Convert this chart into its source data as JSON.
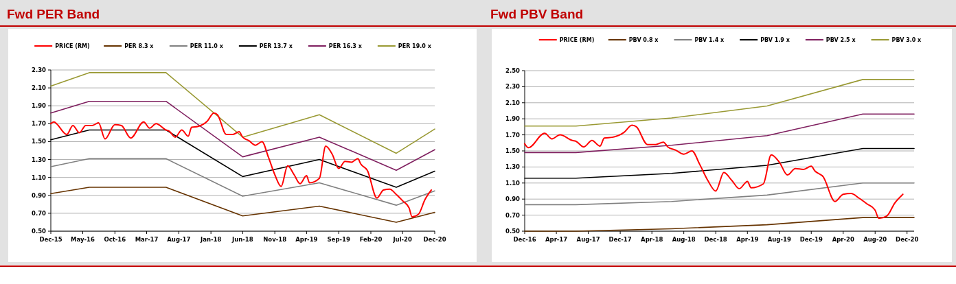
{
  "chart_data": [
    {
      "type": "line",
      "title": "Fwd PER Band",
      "legend": "top",
      "grid": "y",
      "marker": "none",
      "line_style": "solid",
      "xlim": [
        "2015-12",
        "2020-12"
      ],
      "ylim": [
        0.5,
        2.3
      ],
      "yticks": [
        {
          "value": 0.5,
          "label": "0.50"
        },
        {
          "value": 0.7,
          "label": "0.70"
        },
        {
          "value": 0.9,
          "label": "0.90"
        },
        {
          "value": 1.1,
          "label": "1.10"
        },
        {
          "value": 1.3,
          "label": "1.30"
        },
        {
          "value": 1.5,
          "label": "1.50"
        },
        {
          "value": 1.7,
          "label": "1.70"
        },
        {
          "value": 1.9,
          "label": "1.90"
        },
        {
          "value": 2.1,
          "label": "2.10"
        },
        {
          "value": 2.3,
          "label": "2.30"
        }
      ],
      "xticks": [
        {
          "value": "2015-12",
          "label": "Dec-15"
        },
        {
          "value": "2016-05",
          "label": "May-16"
        },
        {
          "value": "2016-10",
          "label": "Oct-16"
        },
        {
          "value": "2017-03",
          "label": "Mar-17"
        },
        {
          "value": "2017-08",
          "label": "Aug-17"
        },
        {
          "value": "2018-01",
          "label": "Jan-18"
        },
        {
          "value": "2018-06",
          "label": "Jun-18"
        },
        {
          "value": "2018-11",
          "label": "Nov-18"
        },
        {
          "value": "2019-04",
          "label": "Apr-19"
        },
        {
          "value": "2019-09",
          "label": "Sep-19"
        },
        {
          "value": "2020-02",
          "label": "Feb-20"
        },
        {
          "value": "2020-07",
          "label": "Jul-20"
        },
        {
          "value": "2020-12",
          "label": "Dec-20"
        }
      ],
      "series": [
        {
          "name": "PRICE (RM)",
          "color": "#ff0000",
          "x": [
            "2015-12-01",
            "2015-12-15",
            "2016-02-15",
            "2016-03-15",
            "2016-04-15",
            "2016-05-15",
            "2016-06-15",
            "2016-07-15",
            "2016-08-15",
            "2016-10-01",
            "2016-11-01",
            "2016-12-15",
            "2017-02-15",
            "2017-03-15",
            "2017-04-15",
            "2017-06-01",
            "2017-06-15",
            "2017-07-15",
            "2017-08-15",
            "2017-09-15",
            "2017-10-01",
            "2017-11-01",
            "2017-12-15",
            "2018-01-15",
            "2018-02-01",
            "2018-03-15",
            "2018-04-15",
            "2018-05-15",
            "2018-06-01",
            "2018-07-01",
            "2018-08-01",
            "2018-09-01",
            "2018-10-01",
            "2018-11-01",
            "2018-12-01",
            "2019-01-01",
            "2019-02-01",
            "2019-03-01",
            "2019-04-01",
            "2019-04-15",
            "2019-06-01",
            "2019-07-01",
            "2019-08-01",
            "2019-09-01",
            "2019-10-01",
            "2019-11-01",
            "2019-12-01",
            "2019-12-15",
            "2020-01-15",
            "2020-03-01",
            "2020-04-01",
            "2020-05-01",
            "2020-06-01",
            "2020-07-01",
            "2020-08-01",
            "2020-08-15",
            "2020-09-15",
            "2020-10-15",
            "2020-11-15"
          ],
          "values": [
            1.7,
            1.72,
            1.58,
            1.68,
            1.6,
            1.68,
            1.68,
            1.71,
            1.53,
            1.69,
            1.68,
            1.54,
            1.72,
            1.65,
            1.7,
            1.63,
            1.62,
            1.55,
            1.63,
            1.56,
            1.66,
            1.67,
            1.73,
            1.82,
            1.8,
            1.58,
            1.58,
            1.61,
            1.55,
            1.51,
            1.46,
            1.5,
            1.33,
            1.13,
            1.0,
            1.23,
            1.13,
            1.03,
            1.12,
            1.04,
            1.09,
            1.45,
            1.36,
            1.2,
            1.28,
            1.27,
            1.31,
            1.25,
            1.18,
            0.87,
            0.96,
            0.97,
            0.91,
            0.84,
            0.76,
            0.66,
            0.69,
            0.85,
            0.96
          ]
        },
        {
          "name": "PER 8.3 x",
          "color": "#663300",
          "x": [
            "2015-12",
            "2016-06",
            "2017-06",
            "2018-06",
            "2019-06",
            "2020-06",
            "2020-12"
          ],
          "values": [
            0.92,
            0.99,
            0.99,
            0.67,
            0.78,
            0.6,
            0.71
          ]
        },
        {
          "name": "PER 11.0 x",
          "color": "#808080",
          "x": [
            "2015-12",
            "2016-06",
            "2017-06",
            "2018-06",
            "2019-06",
            "2020-06",
            "2020-12"
          ],
          "values": [
            1.22,
            1.31,
            1.31,
            0.89,
            1.04,
            0.79,
            0.95
          ]
        },
        {
          "name": "PER 13.7 x",
          "color": "#000000",
          "x": [
            "2015-12",
            "2016-06",
            "2017-06",
            "2018-06",
            "2019-06",
            "2020-06",
            "2020-12"
          ],
          "values": [
            1.52,
            1.63,
            1.63,
            1.11,
            1.3,
            0.99,
            1.17
          ]
        },
        {
          "name": "PER 16.3 x",
          "color": "#7f1f5f",
          "x": [
            "2015-12",
            "2016-06",
            "2017-06",
            "2018-06",
            "2019-06",
            "2020-06",
            "2020-12"
          ],
          "values": [
            1.82,
            1.95,
            1.95,
            1.33,
            1.55,
            1.18,
            1.41
          ]
        },
        {
          "name": "PER 19.0 x",
          "color": "#999933",
          "x": [
            "2015-12",
            "2016-06",
            "2017-06",
            "2018-06",
            "2019-06",
            "2020-06",
            "2020-12"
          ],
          "values": [
            2.12,
            2.27,
            2.27,
            1.55,
            1.8,
            1.37,
            1.64
          ]
        }
      ]
    },
    {
      "type": "line",
      "title": "Fwd PBV Band",
      "legend": "top",
      "grid": "y",
      "marker": "none",
      "line_style": "solid",
      "xlim": [
        "2016-12",
        "2020-12-28"
      ],
      "ylim": [
        0.5,
        2.5
      ],
      "yticks": [
        {
          "value": 0.5,
          "label": "0.50"
        },
        {
          "value": 0.7,
          "label": "0.70"
        },
        {
          "value": 0.9,
          "label": "0.90"
        },
        {
          "value": 1.1,
          "label": "1.10"
        },
        {
          "value": 1.3,
          "label": "1.30"
        },
        {
          "value": 1.5,
          "label": "1.50"
        },
        {
          "value": 1.7,
          "label": "1.70"
        },
        {
          "value": 1.9,
          "label": "1.90"
        },
        {
          "value": 2.1,
          "label": "2.10"
        },
        {
          "value": 2.3,
          "label": "2.30"
        },
        {
          "value": 2.5,
          "label": "2.50"
        }
      ],
      "xticks": [
        {
          "value": "2016-12",
          "label": "Dec-16"
        },
        {
          "value": "2017-04",
          "label": "Apr-17"
        },
        {
          "value": "2017-08",
          "label": "Aug-17"
        },
        {
          "value": "2017-12",
          "label": "Dec-17"
        },
        {
          "value": "2018-04",
          "label": "Apr-18"
        },
        {
          "value": "2018-08",
          "label": "Aug-18"
        },
        {
          "value": "2018-12",
          "label": "Dec-18"
        },
        {
          "value": "2019-04",
          "label": "Apr-19"
        },
        {
          "value": "2019-08",
          "label": "Aug-19"
        },
        {
          "value": "2019-12",
          "label": "Dec-19"
        },
        {
          "value": "2020-04",
          "label": "Apr-20"
        },
        {
          "value": "2020-08",
          "label": "Aug-20"
        },
        {
          "value": "2020-12",
          "label": "Dec-20"
        }
      ],
      "series": [
        {
          "name": "PRICE (RM)",
          "color": "#ff0000",
          "x": [
            "2016-12-01",
            "2016-12-15",
            "2017-02-15",
            "2017-03-15",
            "2017-04-15",
            "2017-06-01",
            "2017-06-15",
            "2017-07-15",
            "2017-08-15",
            "2017-09-15",
            "2017-10-01",
            "2017-11-01",
            "2017-12-15",
            "2018-01-15",
            "2018-02-01",
            "2018-03-15",
            "2018-04-15",
            "2018-05-15",
            "2018-06-01",
            "2018-07-01",
            "2018-08-01",
            "2018-09-01",
            "2018-10-01",
            "2018-11-01",
            "2018-12-01",
            "2019-01-01",
            "2019-02-01",
            "2019-03-01",
            "2019-04-01",
            "2019-04-15",
            "2019-06-01",
            "2019-07-01",
            "2019-08-01",
            "2019-09-01",
            "2019-10-01",
            "2019-11-01",
            "2019-12-01",
            "2019-12-15",
            "2020-01-15",
            "2020-03-01",
            "2020-04-01",
            "2020-05-01",
            "2020-06-01",
            "2020-07-01",
            "2020-08-01",
            "2020-08-15",
            "2020-09-15",
            "2020-10-15",
            "2020-11-15"
          ],
          "values": [
            1.59,
            1.54,
            1.72,
            1.65,
            1.7,
            1.63,
            1.62,
            1.55,
            1.63,
            1.56,
            1.66,
            1.67,
            1.73,
            1.82,
            1.8,
            1.58,
            1.58,
            1.61,
            1.55,
            1.51,
            1.46,
            1.5,
            1.33,
            1.13,
            1.0,
            1.23,
            1.13,
            1.03,
            1.12,
            1.04,
            1.09,
            1.45,
            1.36,
            1.2,
            1.28,
            1.27,
            1.31,
            1.25,
            1.18,
            0.87,
            0.96,
            0.97,
            0.91,
            0.84,
            0.76,
            0.66,
            0.69,
            0.85,
            0.96
          ]
        },
        {
          "name": "PBV 0.8 x",
          "color": "#663300",
          "x": [
            "2016-12",
            "2017-06-15",
            "2018-06-15",
            "2019-06-15",
            "2020-06-15",
            "2020-12-28"
          ],
          "values": [
            0.5,
            0.5,
            0.53,
            0.58,
            0.67,
            0.67
          ]
        },
        {
          "name": "PBV 1.4 x",
          "color": "#808080",
          "x": [
            "2016-12",
            "2017-06-15",
            "2018-06-15",
            "2019-06-15",
            "2020-06-15",
            "2020-12-28"
          ],
          "values": [
            0.83,
            0.83,
            0.87,
            0.95,
            1.1,
            1.1
          ]
        },
        {
          "name": "PBV 1.9 x",
          "color": "#000000",
          "x": [
            "2016-12",
            "2017-06-15",
            "2018-06-15",
            "2019-06-15",
            "2020-06-15",
            "2020-12-28"
          ],
          "values": [
            1.16,
            1.16,
            1.22,
            1.32,
            1.53,
            1.53
          ]
        },
        {
          "name": "PBV 2.5 x",
          "color": "#7f1f5f",
          "x": [
            "2016-12",
            "2017-06-15",
            "2018-06-15",
            "2019-06-15",
            "2020-06-15",
            "2020-12-28"
          ],
          "values": [
            1.48,
            1.48,
            1.57,
            1.69,
            1.96,
            1.96
          ]
        },
        {
          "name": "PBV 3.0 x",
          "color": "#999933",
          "x": [
            "2016-12",
            "2017-06-15",
            "2018-06-15",
            "2019-06-15",
            "2020-06-15",
            "2020-12-28"
          ],
          "values": [
            1.81,
            1.81,
            1.91,
            2.06,
            2.39,
            2.39
          ]
        }
      ]
    }
  ]
}
